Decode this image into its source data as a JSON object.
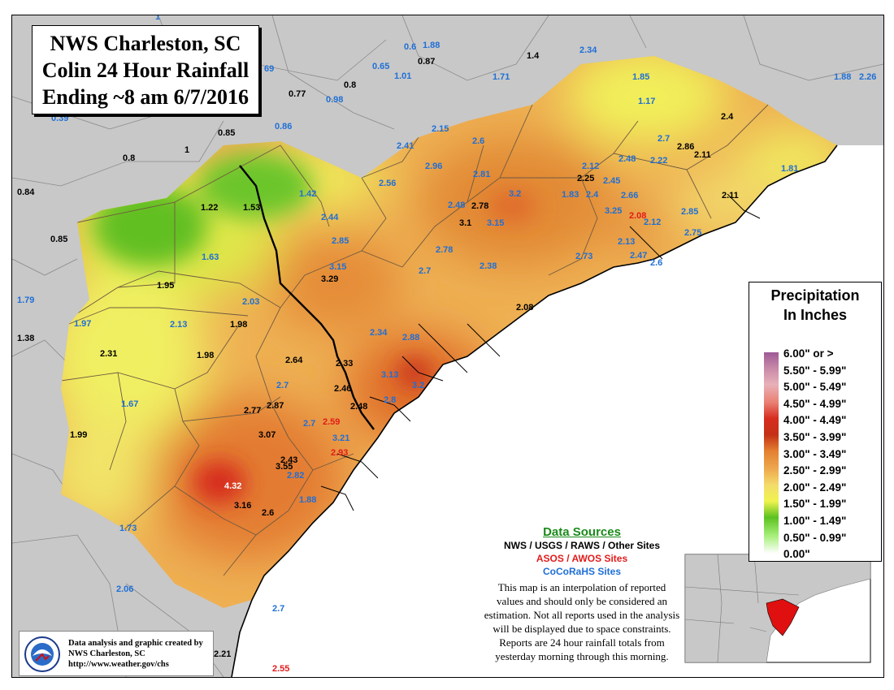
{
  "title": {
    "line1": "NWS Charleston, SC",
    "line2": "Colin 24 Hour Rainfall",
    "line3": "Ending ~8 am 6/7/2016"
  },
  "legend": {
    "title_line1": "Precipitation",
    "title_line2": "In Inches",
    "entries": [
      {
        "label": "6.00\" or >",
        "color": "#9e5a96"
      },
      {
        "label": "5.50\" - 5.99\"",
        "color": "#c88aa8"
      },
      {
        "label": "5.00\" - 5.49\"",
        "color": "#e8b0b8"
      },
      {
        "label": "4.50\" - 4.99\"",
        "color": "#ea7f72"
      },
      {
        "label": "4.00\" - 4.49\"",
        "color": "#d62c1e"
      },
      {
        "label": "3.50\" - 3.99\"",
        "color": "#c43116"
      },
      {
        "label": "3.00\" - 3.49\"",
        "color": "#e37f30"
      },
      {
        "label": "2.50\" - 2.99\"",
        "color": "#eea94e"
      },
      {
        "label": "2.00\" - 2.49\"",
        "color": "#f3dc6a"
      },
      {
        "label": "1.50\" - 1.99\"",
        "color": "#f0f34e"
      },
      {
        "label": "1.00\" - 1.49\"",
        "color": "#5cc11f"
      },
      {
        "label": "0.50\" - 0.99\"",
        "color": "#a6ef78"
      },
      {
        "label": "0.00\"",
        "color": "#ffffff"
      }
    ]
  },
  "sources": {
    "title": "Data Sources",
    "nws": "NWS / USGS / RAWS / Other Sites",
    "asos": "ASOS / AWOS Sites",
    "cocorahs": "CoCoRaHS Sites",
    "disclaimer": [
      "This map is an interpolation of reported",
      "values and should only be considered an",
      "estimation. Not all reports used in the analysis",
      "will be displayed due to space constraints.",
      "Reports are 24 hour rainfall totals from",
      "yesterday morning through this morning."
    ],
    "colors": {
      "nws": "#000000",
      "asos": "#e21b1b",
      "cocorahs": "#1f6fd6",
      "title": "#1a8a1a"
    }
  },
  "credit": {
    "line1": "Data analysis and graphic created by",
    "line2": "NWS Charleston, SC",
    "line3": "http://www.weather.gov/chs"
  },
  "reports": [
    {
      "v": "1",
      "t": "c"
    },
    {
      "v": "0.6",
      "t": "c"
    },
    {
      "v": "1.88",
      "t": "c"
    },
    {
      "v": "1.4",
      "t": "n"
    },
    {
      "v": "2.34",
      "t": "c"
    },
    {
      "v": "0.65",
      "t": "c"
    },
    {
      "v": "0.87",
      "t": "n"
    },
    {
      "v": "1.01",
      "t": "c"
    },
    {
      "v": "1.71",
      "t": "c"
    },
    {
      "v": "1.85",
      "t": "c"
    },
    {
      "v": "1.88",
      "t": "c"
    },
    {
      "v": "2.26",
      "t": "c"
    },
    {
      "v": "69",
      "t": "c"
    },
    {
      "v": "0.77",
      "t": "n"
    },
    {
      "v": "0.8",
      "t": "n"
    },
    {
      "v": "0.98",
      "t": "c"
    },
    {
      "v": "0.39",
      "t": "c"
    },
    {
      "v": "0.85",
      "t": "n"
    },
    {
      "v": "0.86",
      "t": "c"
    },
    {
      "v": "1.17",
      "t": "c"
    },
    {
      "v": "2.15",
      "t": "c"
    },
    {
      "v": "2.4",
      "t": "n"
    },
    {
      "v": "0.8",
      "t": "n"
    },
    {
      "v": "1",
      "t": "n"
    },
    {
      "v": "2.6",
      "t": "c"
    },
    {
      "v": "2.7",
      "t": "c"
    },
    {
      "v": "2.86",
      "t": "n"
    },
    {
      "v": "2.11",
      "t": "n"
    },
    {
      "v": "2.41",
      "t": "c"
    },
    {
      "v": "2.96",
      "t": "c"
    },
    {
      "v": "2.12",
      "t": "c"
    },
    {
      "v": "2.48",
      "t": "c"
    },
    {
      "v": "2.22",
      "t": "c"
    },
    {
      "v": "1.81",
      "t": "c"
    },
    {
      "v": "2.81",
      "t": "c"
    },
    {
      "v": "2.25",
      "t": "n"
    },
    {
      "v": "2.45",
      "t": "c"
    },
    {
      "v": "2.56",
      "t": "c"
    },
    {
      "v": "0.84",
      "t": "n"
    },
    {
      "v": "1.22",
      "t": "n"
    },
    {
      "v": "1.53",
      "t": "n"
    },
    {
      "v": "1.42",
      "t": "c"
    },
    {
      "v": "3.2",
      "t": "c"
    },
    {
      "v": "1.83",
      "t": "c"
    },
    {
      "v": "2.4",
      "t": "c"
    },
    {
      "v": "2.66",
      "t": "c"
    },
    {
      "v": "2.11",
      "t": "n"
    },
    {
      "v": "2.48",
      "t": "c"
    },
    {
      "v": "2.78",
      "t": "n"
    },
    {
      "v": "3.25",
      "t": "c"
    },
    {
      "v": "2.08",
      "t": "a"
    },
    {
      "v": "2.12",
      "t": "c"
    },
    {
      "v": "2.85",
      "t": "c"
    },
    {
      "v": "2.44",
      "t": "c"
    },
    {
      "v": "3.1",
      "t": "n"
    },
    {
      "v": "3.15",
      "t": "c"
    },
    {
      "v": "2.85",
      "t": "c"
    },
    {
      "v": "2.75",
      "t": "c"
    },
    {
      "v": "0.85",
      "t": "n"
    },
    {
      "v": "2.78",
      "t": "c"
    },
    {
      "v": "2.13",
      "t": "c"
    },
    {
      "v": "3.15",
      "t": "c"
    },
    {
      "v": "2.73",
      "t": "c"
    },
    {
      "v": "2.47",
      "t": "c"
    },
    {
      "v": "1.63",
      "t": "c"
    },
    {
      "v": "2.6",
      "t": "c"
    },
    {
      "v": "2.38",
      "t": "c"
    },
    {
      "v": "2.7",
      "t": "c"
    },
    {
      "v": "3.29",
      "t": "n"
    },
    {
      "v": "1.95",
      "t": "n"
    },
    {
      "v": "1.79",
      "t": "c"
    },
    {
      "v": "2.03",
      "t": "c"
    },
    {
      "v": "2.08",
      "t": "n"
    },
    {
      "v": "1.97",
      "t": "c"
    },
    {
      "v": "2.13",
      "t": "c"
    },
    {
      "v": "1.98",
      "t": "n"
    },
    {
      "v": "1.38",
      "t": "n"
    },
    {
      "v": "2.34",
      "t": "c"
    },
    {
      "v": "2.88",
      "t": "c"
    },
    {
      "v": "2.31",
      "t": "n"
    },
    {
      "v": "1.98",
      "t": "n"
    },
    {
      "v": "2.64",
      "t": "n"
    },
    {
      "v": "2.33",
      "t": "n"
    },
    {
      "v": "3.13",
      "t": "c"
    },
    {
      "v": "3.2",
      "t": "c"
    },
    {
      "v": "2.7",
      "t": "c"
    },
    {
      "v": "2.46",
      "t": "n"
    },
    {
      "v": "1.67",
      "t": "c"
    },
    {
      "v": "2.8",
      "t": "c"
    },
    {
      "v": "2.87",
      "t": "n"
    },
    {
      "v": "2.77",
      "t": "n"
    },
    {
      "v": "2.48",
      "t": "n"
    },
    {
      "v": "1.99",
      "t": "n"
    },
    {
      "v": "2.7",
      "t": "c"
    },
    {
      "v": "2.59",
      "t": "a"
    },
    {
      "v": "3.07",
      "t": "n"
    },
    {
      "v": "3.21",
      "t": "c"
    },
    {
      "v": "2.93",
      "t": "a"
    },
    {
      "v": "2.43",
      "t": "n"
    },
    {
      "v": "3.55",
      "t": "n"
    },
    {
      "v": "2.82",
      "t": "c"
    },
    {
      "v": "4.32",
      "t": "w"
    },
    {
      "v": "1.88",
      "t": "c"
    },
    {
      "v": "3.16",
      "t": "n"
    },
    {
      "v": "2.6",
      "t": "n"
    },
    {
      "v": "1.73",
      "t": "c"
    },
    {
      "v": "2.06",
      "t": "c"
    },
    {
      "v": "2.7",
      "t": "c"
    },
    {
      "v": "2.21",
      "t": "n"
    },
    {
      "v": "2.55",
      "t": "a"
    }
  ]
}
